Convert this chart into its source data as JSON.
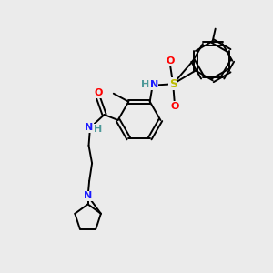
{
  "background_color": "#ebebeb",
  "bond_color": "#000000",
  "N_color": "#1a1aff",
  "O_color": "#ff0000",
  "S_color": "#bbbb00",
  "H_color": "#4d9999",
  "figsize": [
    3.0,
    3.0
  ],
  "dpi": 100,
  "xlim": [
    0,
    10
  ],
  "ylim": [
    0,
    10
  ]
}
